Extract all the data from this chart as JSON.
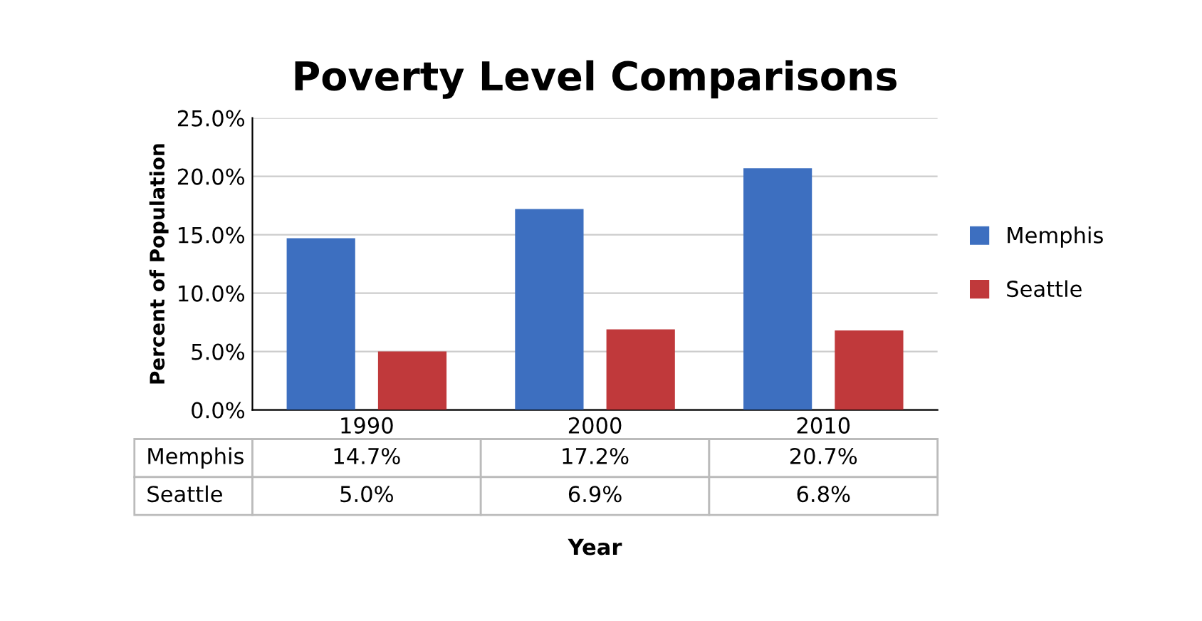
{
  "chart_data": {
    "type": "bar",
    "title": "Poverty Level Comparisons",
    "xlabel": "Year",
    "ylabel": "Percent of Population",
    "categories": [
      "1990",
      "2000",
      "2010"
    ],
    "series": [
      {
        "name": "Memphis",
        "color": "#3d6fc0",
        "values": [
          14.7,
          17.2,
          20.7
        ],
        "value_labels": [
          "14.7%",
          "17.2%",
          "20.7%"
        ]
      },
      {
        "name": "Seattle",
        "color": "#c0393b",
        "values": [
          5.0,
          6.9,
          6.8
        ],
        "value_labels": [
          "5.0%",
          "6.9%",
          "6.8%"
        ]
      }
    ],
    "ylim": [
      0,
      25
    ],
    "yticks": [
      {
        "value": 0,
        "label": "0.0%"
      },
      {
        "value": 5,
        "label": "5.0%"
      },
      {
        "value": 10,
        "label": "10.0%"
      },
      {
        "value": 15,
        "label": "15.0%"
      },
      {
        "value": 20,
        "label": "20.0%"
      },
      {
        "value": 25,
        "label": "25.0%"
      }
    ],
    "grid": "y",
    "legend": "right"
  }
}
